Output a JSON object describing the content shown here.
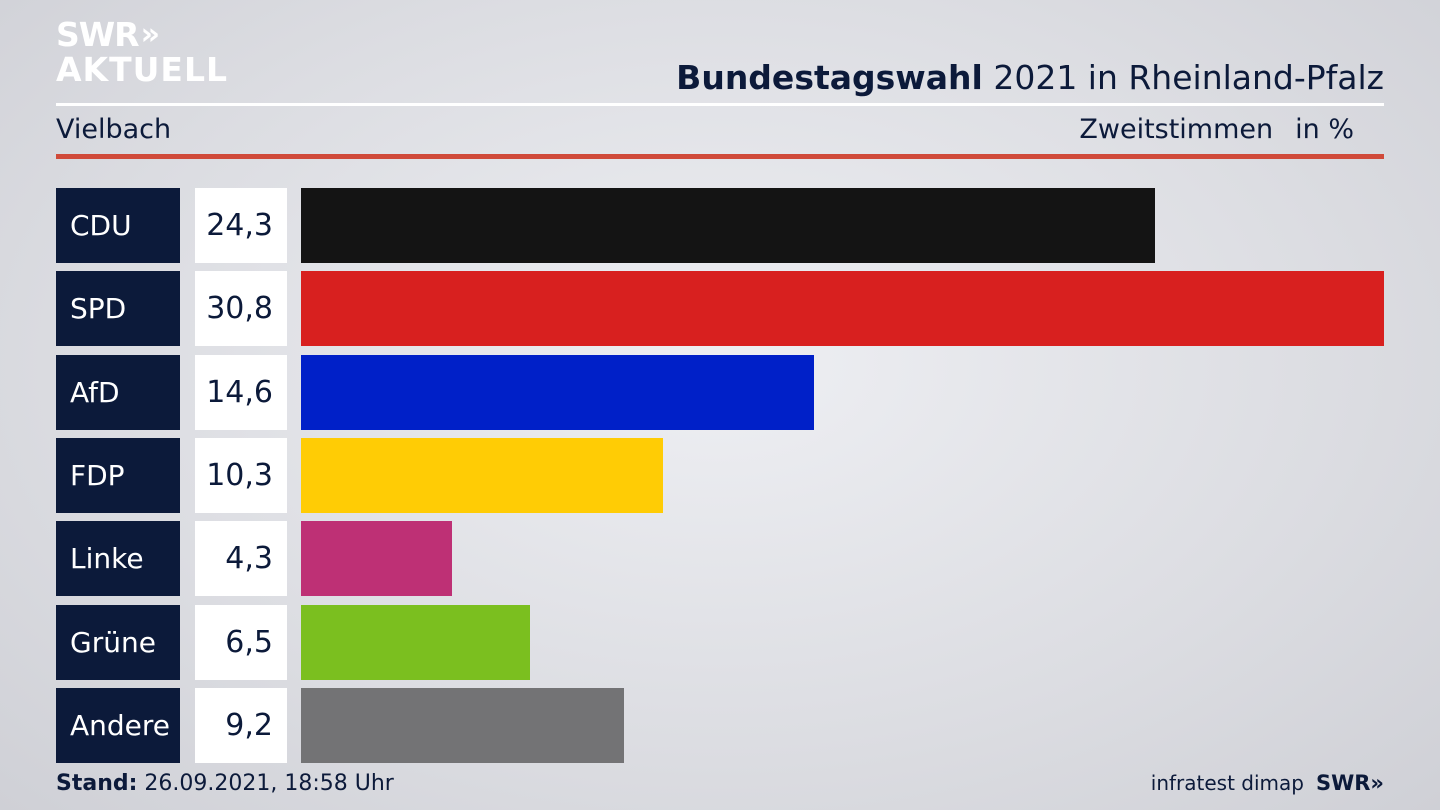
{
  "logo": {
    "line1": "SWR",
    "chevrons": "»",
    "line2": "AKTUELL"
  },
  "header": {
    "title_strong": "Bundestagswahl",
    "title_rest": "2021 in Rheinland-Pfalz",
    "region": "Vielbach",
    "measure": "Zweitstimmen",
    "unit": "in %"
  },
  "chart_data": {
    "type": "bar",
    "orientation": "horizontal",
    "categories": [
      "CDU",
      "SPD",
      "AfD",
      "FDP",
      "Linke",
      "Grüne",
      "Andere"
    ],
    "values": [
      24.3,
      30.8,
      14.6,
      10.3,
      4.3,
      6.5,
      9.2
    ],
    "value_labels": [
      "24,3",
      "30,8",
      "14,6",
      "10,3",
      "4,3",
      "6,5",
      "9,2"
    ],
    "colors": [
      "#141414",
      "#d8201f",
      "#0020c8",
      "#ffcc05",
      "#be3075",
      "#7bbf1f",
      "#737375"
    ],
    "xlim": [
      0,
      30.8
    ],
    "grid": false,
    "legend": "none"
  },
  "footer": {
    "stand_label": "Stand:",
    "stand_value": "26.09.2021, 18:58 Uhr",
    "source": "infratest dimap",
    "brand": "SWR»"
  }
}
